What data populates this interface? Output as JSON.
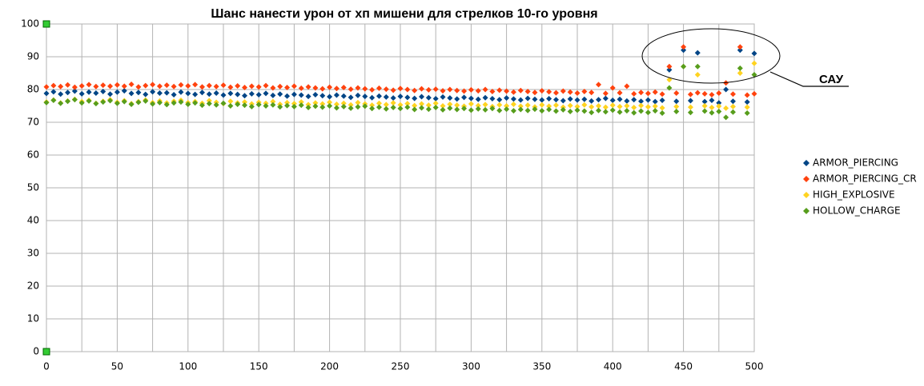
{
  "chart_data": {
    "type": "scatter",
    "title": "Шанс нанести урон от хп мишени для стрелков 10-го уровня",
    "annotation": "САУ",
    "x": [
      0,
      5,
      10,
      15,
      20,
      25,
      30,
      35,
      40,
      45,
      50,
      55,
      60,
      65,
      70,
      75,
      80,
      85,
      90,
      95,
      100,
      105,
      110,
      115,
      120,
      125,
      130,
      135,
      140,
      145,
      150,
      155,
      160,
      165,
      170,
      175,
      180,
      185,
      190,
      195,
      200,
      205,
      210,
      215,
      220,
      225,
      230,
      235,
      240,
      245,
      250,
      255,
      260,
      265,
      270,
      275,
      280,
      285,
      290,
      295,
      300,
      305,
      310,
      315,
      320,
      325,
      330,
      335,
      340,
      345,
      350,
      355,
      360,
      365,
      370,
      375,
      380,
      385,
      390,
      395,
      400,
      405,
      410,
      415,
      420,
      425,
      430,
      435,
      440,
      445,
      450,
      455,
      460,
      465,
      470,
      475,
      480,
      485,
      490,
      495,
      500
    ],
    "series": [
      {
        "name": "ARMOR_PIERCING",
        "color": "#004586",
        "values": [
          78.8,
          79.3,
          78.6,
          79.1,
          79.5,
          78.7,
          79.2,
          78.9,
          79.4,
          78.6,
          79.2,
          79.6,
          78.8,
          79.1,
          78.5,
          79.3,
          78.9,
          79.0,
          78.4,
          79.2,
          78.8,
          78.5,
          79.1,
          78.6,
          78.9,
          78.3,
          78.8,
          78.5,
          78.1,
          78.7,
          78.4,
          78.8,
          78.2,
          78.6,
          78.0,
          78.5,
          78.3,
          77.9,
          78.4,
          78.1,
          77.8,
          78.3,
          78.0,
          77.6,
          78.2,
          77.9,
          77.5,
          78.0,
          77.7,
          77.4,
          77.9,
          77.6,
          77.3,
          77.8,
          77.5,
          77.2,
          77.7,
          77.4,
          77.1,
          77.6,
          77.3,
          77.0,
          77.5,
          77.2,
          76.9,
          77.4,
          77.1,
          76.8,
          77.3,
          77.0,
          76.8,
          77.2,
          76.9,
          76.6,
          77.1,
          76.8,
          77.0,
          76.5,
          76.9,
          77.3,
          76.7,
          77.0,
          76.5,
          76.9,
          76.4,
          76.8,
          76.3,
          76.7,
          86.0,
          76.4,
          92.0,
          76.6,
          91.2,
          76.3,
          76.7,
          75.9,
          80.0,
          76.4,
          92.0,
          76.2,
          91.0
        ]
      },
      {
        "name": "ARMOR_PIERCING_CR",
        "color": "#ff420e",
        "values": [
          80.8,
          81.2,
          80.9,
          81.4,
          80.7,
          81.1,
          81.5,
          80.9,
          81.3,
          81.0,
          81.4,
          81.0,
          81.6,
          80.8,
          81.2,
          81.5,
          81.0,
          81.3,
          80.9,
          81.4,
          81.1,
          81.5,
          80.8,
          81.2,
          80.9,
          81.3,
          80.7,
          81.1,
          80.6,
          81.0,
          80.8,
          81.2,
          80.5,
          80.9,
          80.6,
          81.0,
          80.4,
          80.8,
          80.5,
          80.2,
          80.7,
          80.3,
          80.6,
          80.1,
          80.5,
          80.2,
          79.9,
          80.4,
          80.1,
          79.8,
          80.3,
          80.0,
          79.7,
          80.2,
          79.9,
          80.1,
          79.6,
          80.0,
          79.7,
          79.5,
          79.9,
          79.6,
          80.0,
          79.4,
          79.8,
          79.5,
          79.2,
          79.7,
          79.4,
          79.1,
          79.6,
          79.3,
          79.0,
          79.5,
          79.2,
          78.9,
          79.4,
          79.1,
          81.5,
          78.8,
          80.5,
          79.0,
          81.0,
          78.7,
          79.1,
          78.8,
          79.2,
          78.6,
          87.0,
          78.9,
          93.0,
          78.5,
          79.0,
          78.7,
          78.4,
          78.9,
          82.0,
          78.6,
          93.0,
          78.3,
          78.7
        ]
      },
      {
        "name": "HIGH_EXPLOSIVE",
        "color": "#ffd320",
        "values": [
          76.2,
          76.8,
          75.9,
          76.5,
          77.0,
          76.3,
          76.7,
          75.8,
          76.4,
          76.9,
          76.1,
          76.6,
          75.7,
          76.3,
          76.8,
          76.0,
          76.5,
          75.9,
          76.4,
          76.7,
          76.0,
          76.3,
          75.8,
          76.6,
          76.1,
          75.7,
          76.4,
          75.9,
          76.2,
          75.6,
          76.1,
          75.8,
          76.3,
          75.5,
          76.0,
          75.7,
          76.2,
          75.4,
          75.9,
          75.6,
          76.1,
          75.5,
          75.8,
          75.3,
          76.0,
          75.6,
          75.2,
          75.8,
          75.4,
          75.9,
          75.3,
          75.7,
          75.1,
          75.6,
          75.2,
          75.8,
          75.0,
          75.5,
          75.2,
          74.9,
          75.6,
          75.1,
          75.4,
          74.8,
          75.3,
          75.0,
          75.5,
          74.9,
          75.2,
          74.7,
          75.3,
          74.9,
          75.2,
          74.6,
          75.1,
          74.8,
          75.3,
          74.7,
          75.0,
          74.6,
          75.2,
          74.8,
          75.0,
          74.5,
          75.1,
          74.7,
          74.9,
          74.4,
          83.0,
          74.8,
          87.0,
          74.6,
          84.5,
          75.0,
          74.5,
          74.9,
          74.3,
          74.8,
          85.0,
          74.6,
          88.0
        ]
      },
      {
        "name": "HOLLOW_CHARGE",
        "color": "#579d1c",
        "values": [
          76.0,
          76.7,
          75.8,
          76.4,
          76.9,
          75.9,
          76.5,
          75.7,
          76.2,
          76.6,
          75.8,
          76.3,
          75.5,
          76.1,
          76.5,
          75.6,
          76.0,
          75.4,
          75.9,
          76.2,
          75.5,
          75.9,
          75.2,
          75.7,
          75.3,
          75.8,
          75.0,
          75.5,
          75.2,
          74.8,
          75.4,
          75.0,
          75.3,
          74.7,
          75.1,
          74.8,
          75.2,
          74.5,
          74.9,
          74.6,
          75.0,
          74.4,
          74.8,
          74.3,
          74.7,
          74.9,
          74.2,
          74.6,
          74.1,
          74.5,
          74.2,
          74.6,
          73.9,
          74.4,
          74.0,
          74.5,
          73.8,
          74.3,
          73.9,
          74.2,
          73.7,
          74.1,
          73.8,
          74.2,
          73.6,
          74.0,
          73.5,
          73.9,
          73.6,
          74.0,
          73.5,
          73.9,
          73.4,
          73.8,
          73.3,
          73.7,
          73.4,
          73.0,
          73.6,
          73.2,
          73.7,
          73.1,
          73.5,
          72.9,
          73.4,
          73.0,
          73.5,
          72.8,
          80.5,
          73.3,
          87.0,
          73.0,
          87.0,
          73.4,
          72.9,
          73.3,
          71.5,
          73.1,
          86.5,
          72.8,
          84.5
        ]
      }
    ],
    "xlim": [
      0,
      500
    ],
    "xticks": [
      0,
      50,
      100,
      150,
      200,
      250,
      300,
      350,
      400,
      450,
      500
    ],
    "x_minor_grid": [
      25,
      75,
      125,
      175,
      225,
      275,
      325,
      375,
      425,
      475
    ],
    "ylim": [
      0,
      100
    ],
    "yticks": [
      0,
      10,
      20,
      30,
      40,
      50,
      60,
      70,
      80,
      90,
      100
    ],
    "grid": true,
    "legend": "right"
  }
}
